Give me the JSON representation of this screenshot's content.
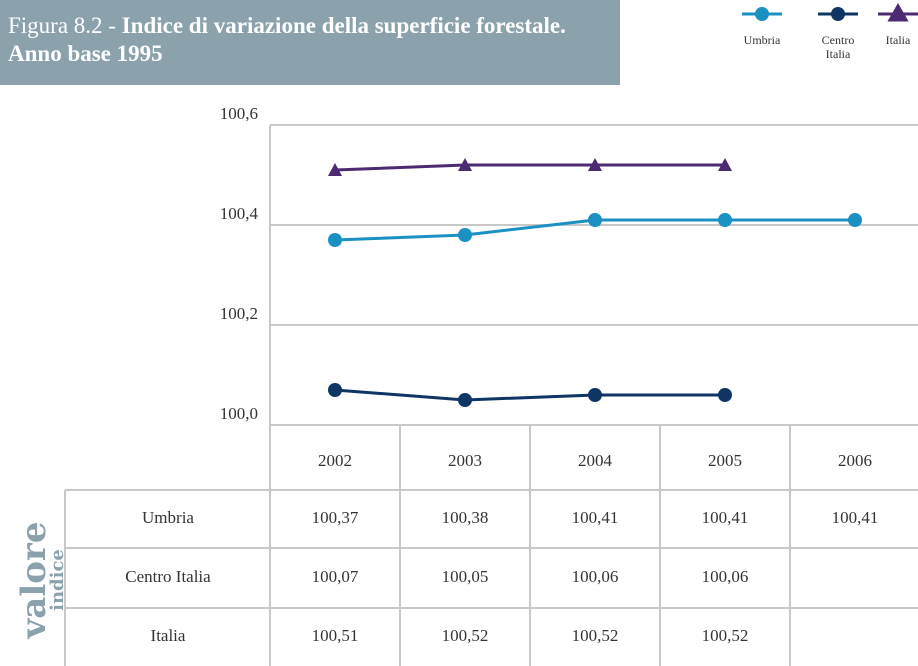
{
  "chart_data": {
    "type": "line",
    "figure_label": "Figura 8.2 -",
    "title": "Indice di variazione della superficie forestale. Anno base 1995",
    "categories": [
      "2002",
      "2003",
      "2004",
      "2005",
      "2006"
    ],
    "series": [
      {
        "name": "Umbria",
        "color": "#1b90c2",
        "marker": "circle",
        "values": [
          100.37,
          100.38,
          100.41,
          100.41,
          100.41
        ],
        "value_labels": [
          "100,37",
          "100,38",
          "100,41",
          "100,41",
          "100,41"
        ]
      },
      {
        "name": "Centro Italia",
        "color": "#0e3563",
        "marker": "circle",
        "values": [
          100.07,
          100.05,
          100.06,
          100.06,
          null
        ],
        "value_labels": [
          "100,07",
          "100,05",
          "100,06",
          "100,06",
          null
        ]
      },
      {
        "name": "Italia",
        "color": "#4c2b72",
        "marker": "triangle",
        "values": [
          100.51,
          100.52,
          100.52,
          100.52,
          null
        ],
        "value_labels": [
          "100,51",
          "100,52",
          "100,52",
          "100,52",
          null
        ]
      }
    ],
    "ylim": [
      100.0,
      100.6
    ],
    "yticks": [
      {
        "value": 100.0,
        "label": "100,0"
      },
      {
        "value": 100.2,
        "label": "100,2"
      },
      {
        "value": 100.4,
        "label": "100,4"
      },
      {
        "value": 100.6,
        "label": "100,6"
      }
    ],
    "grid": true,
    "table_side_label": {
      "line1": "valore",
      "line2": "indice"
    }
  }
}
